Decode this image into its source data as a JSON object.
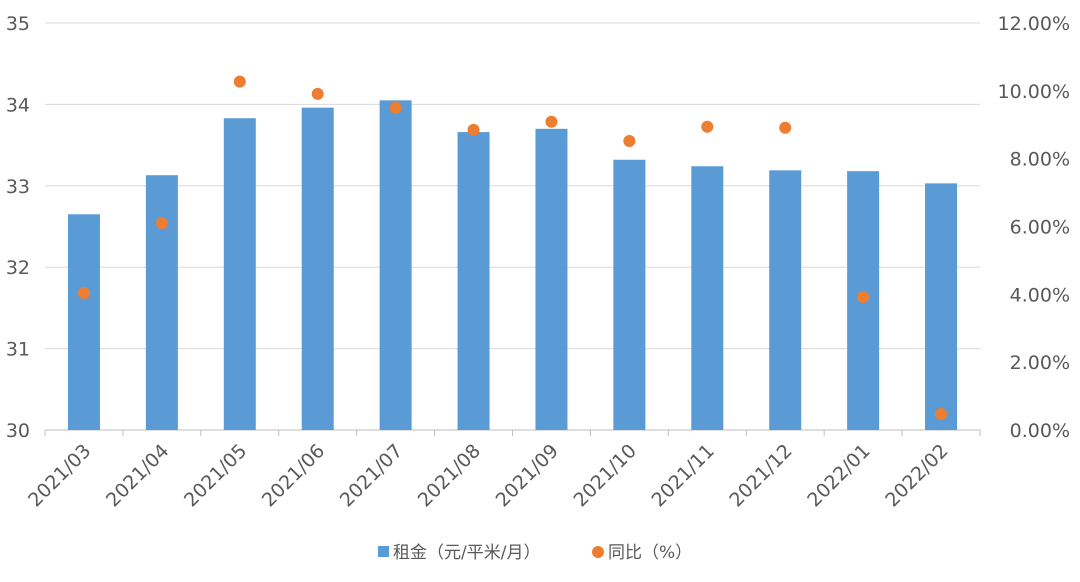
{
  "chart_data": {
    "type": "bar+scatter",
    "categories": [
      "2021/03",
      "2021/04",
      "2021/05",
      "2021/06",
      "2021/07",
      "2021/08",
      "2021/09",
      "2021/10",
      "2021/11",
      "2021/12",
      "2022/01",
      "2022/02"
    ],
    "series": [
      {
        "name": "租金（元/平米/月）",
        "type": "bar",
        "axis": "left",
        "color": "#5B9BD5",
        "values": [
          32.65,
          33.13,
          33.83,
          33.96,
          34.05,
          33.66,
          33.7,
          33.32,
          33.24,
          33.19,
          33.18,
          33.03
        ]
      },
      {
        "name": "同比（%）",
        "type": "scatter",
        "axis": "right",
        "color": "#ED7D31",
        "values": [
          4.04,
          6.1,
          10.27,
          9.91,
          9.5,
          8.85,
          9.09,
          8.52,
          8.94,
          8.91,
          3.92,
          0.47
        ]
      }
    ],
    "left_axis": {
      "ylim": [
        30,
        35
      ],
      "ticks": [
        "30",
        "31",
        "32",
        "33",
        "34",
        "35"
      ]
    },
    "right_axis": {
      "ylim": [
        0,
        12
      ],
      "ticks": [
        "0.00%",
        "2.00%",
        "4.00%",
        "6.00%",
        "8.00%",
        "10.00%",
        "12.00%"
      ]
    },
    "grid": true,
    "legend": "bottom"
  }
}
